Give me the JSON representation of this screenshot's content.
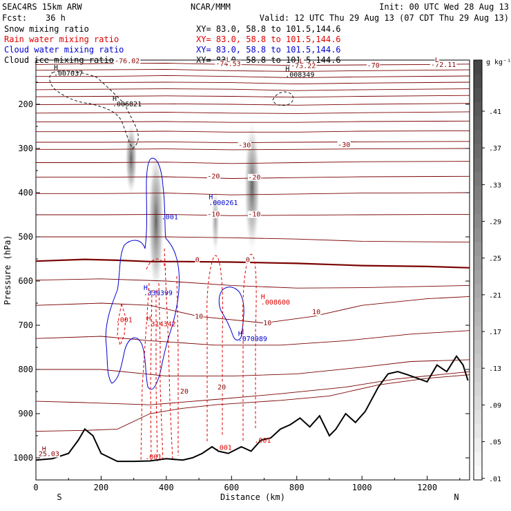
{
  "header": {
    "model": "SEAC4RS 15km ARW",
    "center": "NCAR/MMM",
    "init": "Init: 00 UTC Wed 28 Aug 13",
    "fcst_label": "Fcst:",
    "fcst_value": "36 h",
    "valid": "Valid: 12 UTC Thu 29 Aug 13 (07 CDT Thu 29 Aug 13)"
  },
  "fields": [
    {
      "name": "Snow mixing ratio",
      "xy": "XY=  83.0, 58.8 to 101.5,144.6",
      "color": "#000000"
    },
    {
      "name": "Rain water mixing ratio",
      "xy": "XY=  83.0, 58.8 to 101.5,144.6",
      "color": "#dd0000"
    },
    {
      "name": "Cloud water mixing ratio",
      "xy": "XY=  83.0, 58.8 to 101.5,144.6",
      "color": "#0000cc"
    },
    {
      "name": "Cloud ice mixing ratio",
      "xy": "XY=  83.0, 58.8 to 101.5,144.6",
      "color": "#000000"
    }
  ],
  "colorbar": {
    "units": "g kg⁻¹",
    "labels": [
      ".41",
      ".37",
      ".33",
      ".29",
      ".25",
      ".21",
      ".17",
      ".13",
      ".09",
      ".05",
      ".01"
    ]
  },
  "chart_data": {
    "type": "contour-cross-section",
    "xlabel": "Distance (km)",
    "ylabel": "Pressure (hPa)",
    "xlim": [
      0,
      1330
    ],
    "ylim": [
      1050,
      100
    ],
    "xticks": [
      0,
      200,
      400,
      600,
      800,
      1000,
      1200
    ],
    "yticks": [
      1000,
      900,
      800,
      700,
      600,
      500,
      400,
      300,
      200
    ],
    "end_labels": {
      "left": "S",
      "right": "N"
    },
    "temperature_contour_labels": [
      {
        "text": "-76.02",
        "x": 280,
        "p": 107
      },
      {
        "text": "-74.53",
        "x": 590,
        "p": 113
      },
      {
        "text": "-73.22",
        "x": 820,
        "p": 118
      },
      {
        "text": "-70",
        "x": 1035,
        "p": 117
      },
      {
        "text": "-72.11",
        "x": 1250,
        "p": 116
      },
      {
        "text": "L",
        "x": 590,
        "p": 104
      },
      {
        "text": "L",
        "x": 815,
        "p": 108
      },
      {
        "text": "L",
        "x": 1230,
        "p": 105
      },
      {
        "text": "-30",
        "x": 640,
        "p": 298
      },
      {
        "text": "-30",
        "x": 945,
        "p": 297
      },
      {
        "text": "-20",
        "x": 545,
        "p": 368
      },
      {
        "text": "-20",
        "x": 670,
        "p": 370
      },
      {
        "text": "-10",
        "x": 545,
        "p": 454
      },
      {
        "text": "-10",
        "x": 670,
        "p": 454
      },
      {
        "text": "0",
        "x": 495,
        "p": 557
      },
      {
        "text": "0",
        "x": 650,
        "p": 557
      },
      {
        "text": "10",
        "x": 500,
        "p": 685
      },
      {
        "text": "10",
        "x": 710,
        "p": 700
      },
      {
        "text": "10",
        "x": 860,
        "p": 675
      },
      {
        "text": "20",
        "x": 455,
        "p": 855
      },
      {
        "text": "20",
        "x": 570,
        "p": 845
      },
      {
        "text": "H",
        "x": 25,
        "p": 985
      },
      {
        "text": "25.03",
        "x": 40,
        "p": 996
      }
    ],
    "hydrometeor_labels": [
      {
        "text": "H",
        "x": 55,
        "p": 122,
        "field": "snow"
      },
      {
        "text": ".007037",
        "x": 55,
        "p": 135,
        "field": "snow"
      },
      {
        "text": "H",
        "x": 235,
        "p": 192,
        "field": "snow"
      },
      {
        "text": ".006821",
        "x": 235,
        "p": 205,
        "field": "snow"
      },
      {
        "text": "H",
        "x": 765,
        "p": 125,
        "field": "snow"
      },
      {
        "text": ".008349",
        "x": 765,
        "p": 138,
        "field": "snow"
      },
      {
        "text": "H",
        "x": 530,
        "p": 415,
        "field": "cloud_water"
      },
      {
        "text": ".000261",
        "x": 530,
        "p": 428,
        "field": "cloud_water"
      },
      {
        "text": ".001",
        "x": 385,
        "p": 460,
        "field": "cloud_water"
      },
      {
        "text": "H",
        "x": 330,
        "p": 620,
        "field": "cloud_water"
      },
      {
        "text": ".330399",
        "x": 330,
        "p": 632,
        "field": "cloud_water"
      },
      {
        "text": "H",
        "x": 620,
        "p": 724,
        "field": "cloud_water"
      },
      {
        "text": ".070989",
        "x": 620,
        "p": 736,
        "field": "cloud_water"
      },
      {
        "text": ".001",
        "x": 245,
        "p": 693,
        "field": "rain"
      },
      {
        "text": "H",
        "x": 340,
        "p": 690,
        "field": "rain"
      },
      {
        "text": ".314342",
        "x": 340,
        "p": 702,
        "field": "rain"
      },
      {
        "text": "H",
        "x": 690,
        "p": 641,
        "field": "rain"
      },
      {
        "text": ".008600",
        "x": 690,
        "p": 653,
        "field": "rain"
      },
      {
        "text": ".001",
        "x": 335,
        "p": 1003,
        "field": "rain"
      },
      {
        "text": ".001",
        "x": 550,
        "p": 982,
        "field": "rain"
      },
      {
        "text": ".001",
        "x": 670,
        "p": 966,
        "field": "rain"
      }
    ],
    "isotherms": [
      {
        "level": -76,
        "points": [
          [
            0,
            110
          ],
          [
            200,
            108
          ],
          [
            400,
            107
          ],
          [
            600,
            110
          ],
          [
            800,
            112
          ],
          [
            1000,
            111
          ],
          [
            1200,
            110
          ],
          [
            1330,
            109
          ]
        ]
      },
      {
        "level": -74,
        "points": [
          [
            0,
            123
          ],
          [
            200,
            122
          ],
          [
            400,
            121
          ],
          [
            600,
            124
          ],
          [
            800,
            126
          ],
          [
            1000,
            124
          ],
          [
            1330,
            122
          ]
        ]
      },
      {
        "level": -70,
        "points": [
          [
            0,
            137
          ],
          [
            200,
            137
          ],
          [
            400,
            135
          ],
          [
            600,
            137
          ],
          [
            800,
            140
          ],
          [
            1000,
            138
          ],
          [
            1330,
            136
          ]
        ]
      },
      {
        "level": -66,
        "points": [
          [
            0,
            151
          ],
          [
            200,
            151
          ],
          [
            400,
            150
          ],
          [
            600,
            151
          ],
          [
            800,
            154
          ],
          [
            1000,
            152
          ],
          [
            1330,
            150
          ]
        ]
      },
      {
        "level": -62,
        "points": [
          [
            0,
            167
          ],
          [
            200,
            166
          ],
          [
            400,
            165
          ],
          [
            600,
            166
          ],
          [
            800,
            169
          ],
          [
            1000,
            167
          ],
          [
            1330,
            165
          ]
        ]
      },
      {
        "level": -58,
        "points": [
          [
            0,
            183
          ],
          [
            200,
            182
          ],
          [
            400,
            181
          ],
          [
            600,
            182
          ],
          [
            800,
            184
          ],
          [
            1000,
            182
          ],
          [
            1330,
            180
          ]
        ]
      },
      {
        "level": -54,
        "points": [
          [
            0,
            201
          ],
          [
            200,
            200
          ],
          [
            400,
            199
          ],
          [
            600,
            200
          ],
          [
            800,
            202
          ],
          [
            1000,
            200
          ],
          [
            1330,
            198
          ]
        ]
      },
      {
        "level": -50,
        "points": [
          [
            0,
            220
          ],
          [
            200,
            219
          ],
          [
            400,
            218
          ],
          [
            600,
            220
          ],
          [
            800,
            221
          ],
          [
            1000,
            219
          ],
          [
            1330,
            217
          ]
        ]
      },
      {
        "level": -45,
        "points": [
          [
            0,
            240
          ],
          [
            200,
            240
          ],
          [
            400,
            239
          ],
          [
            600,
            241
          ],
          [
            800,
            241
          ],
          [
            1000,
            239
          ],
          [
            1330,
            238
          ]
        ]
      },
      {
        "level": -40,
        "points": [
          [
            0,
            262
          ],
          [
            200,
            262
          ],
          [
            400,
            261
          ],
          [
            600,
            263
          ],
          [
            800,
            263
          ],
          [
            1000,
            261
          ],
          [
            1330,
            260
          ]
        ]
      },
      {
        "level": -35,
        "points": [
          [
            0,
            286
          ],
          [
            200,
            286
          ],
          [
            400,
            285
          ],
          [
            600,
            287
          ],
          [
            800,
            286
          ],
          [
            1000,
            285
          ],
          [
            1330,
            284
          ]
        ]
      },
      {
        "level": -30,
        "points": [
          [
            0,
            302
          ],
          [
            200,
            302
          ],
          [
            400,
            301
          ],
          [
            600,
            303
          ],
          [
            800,
            302
          ],
          [
            1000,
            301
          ],
          [
            1330,
            300
          ]
        ]
      },
      {
        "level": -25,
        "points": [
          [
            0,
            332
          ],
          [
            200,
            332
          ],
          [
            400,
            331
          ],
          [
            600,
            334
          ],
          [
            800,
            332
          ],
          [
            1000,
            330
          ],
          [
            1330,
            329
          ]
        ]
      },
      {
        "level": -20,
        "points": [
          [
            0,
            365
          ],
          [
            200,
            365
          ],
          [
            400,
            364
          ],
          [
            600,
            368
          ],
          [
            800,
            366
          ],
          [
            1000,
            364
          ],
          [
            1330,
            363
          ]
        ]
      },
      {
        "level": -15,
        "points": [
          [
            0,
            402
          ],
          [
            200,
            402
          ],
          [
            400,
            401
          ],
          [
            600,
            405
          ],
          [
            800,
            403
          ],
          [
            1000,
            401
          ],
          [
            1330,
            400
          ]
        ]
      },
      {
        "level": -10,
        "points": [
          [
            0,
            450
          ],
          [
            200,
            450
          ],
          [
            400,
            449
          ],
          [
            600,
            452
          ],
          [
            800,
            451
          ],
          [
            1000,
            450
          ],
          [
            1330,
            449
          ]
        ]
      },
      {
        "level": -5,
        "points": [
          [
            0,
            500
          ],
          [
            200,
            500
          ],
          [
            400,
            500
          ],
          [
            600,
            502
          ],
          [
            800,
            505
          ],
          [
            1000,
            510
          ],
          [
            1330,
            512
          ]
        ]
      },
      {
        "level": 0,
        "points": [
          [
            0,
            555
          ],
          [
            150,
            551
          ],
          [
            250,
            553
          ],
          [
            350,
            556
          ],
          [
            450,
            556
          ],
          [
            600,
            557
          ],
          [
            800,
            560
          ],
          [
            1000,
            565
          ],
          [
            1200,
            567
          ],
          [
            1330,
            570
          ]
        ]
      },
      {
        "level": 5,
        "points": [
          [
            0,
            598
          ],
          [
            200,
            595
          ],
          [
            400,
            600
          ],
          [
            600,
            610
          ],
          [
            800,
            616
          ],
          [
            1000,
            615
          ],
          [
            1200,
            612
          ],
          [
            1330,
            610
          ]
        ]
      },
      {
        "level": 10,
        "points": [
          [
            0,
            655
          ],
          [
            200,
            650
          ],
          [
            350,
            655
          ],
          [
            500,
            680
          ],
          [
            700,
            695
          ],
          [
            850,
            680
          ],
          [
            1000,
            655
          ],
          [
            1200,
            640
          ],
          [
            1330,
            635
          ]
        ]
      },
      {
        "level": 15,
        "points": [
          [
            0,
            730
          ],
          [
            200,
            725
          ],
          [
            350,
            735
          ],
          [
            550,
            745
          ],
          [
            750,
            745
          ],
          [
            950,
            735
          ],
          [
            1150,
            720
          ],
          [
            1330,
            712
          ]
        ]
      },
      {
        "level": 20,
        "points": [
          [
            0,
            800
          ],
          [
            200,
            800
          ],
          [
            400,
            815
          ],
          [
            600,
            815
          ],
          [
            800,
            810
          ],
          [
            1000,
            795
          ],
          [
            1150,
            782
          ],
          [
            1330,
            778
          ]
        ]
      },
      {
        "level": 25,
        "points": [
          [
            0,
            872
          ],
          [
            150,
            875
          ],
          [
            350,
            880
          ],
          [
            550,
            868
          ],
          [
            750,
            855
          ],
          [
            950,
            840
          ],
          [
            1100,
            822
          ],
          [
            1330,
            805
          ]
        ]
      },
      {
        "level": 28,
        "points": [
          [
            0,
            940
          ],
          [
            150,
            938
          ],
          [
            250,
            935
          ],
          [
            350,
            900
          ],
          [
            450,
            888
          ],
          [
            550,
            880
          ],
          [
            750,
            870
          ],
          [
            900,
            860
          ],
          [
            1050,
            835
          ],
          [
            1200,
            820
          ],
          [
            1330,
            812
          ]
        ]
      }
    ],
    "terrain": [
      [
        0,
        1005
      ],
      [
        50,
        1002
      ],
      [
        100,
        990
      ],
      [
        130,
        960
      ],
      [
        150,
        935
      ],
      [
        175,
        950
      ],
      [
        200,
        990
      ],
      [
        250,
        1008
      ],
      [
        300,
        1008
      ],
      [
        350,
        1007
      ],
      [
        400,
        1002
      ],
      [
        450,
        1005
      ],
      [
        480,
        1000
      ],
      [
        510,
        990
      ],
      [
        540,
        975
      ],
      [
        560,
        985
      ],
      [
        590,
        990
      ],
      [
        630,
        975
      ],
      [
        660,
        985
      ],
      [
        690,
        960
      ],
      [
        720,
        955
      ],
      [
        750,
        935
      ],
      [
        780,
        925
      ],
      [
        810,
        910
      ],
      [
        840,
        930
      ],
      [
        870,
        905
      ],
      [
        900,
        950
      ],
      [
        920,
        935
      ],
      [
        950,
        900
      ],
      [
        980,
        920
      ],
      [
        1010,
        895
      ],
      [
        1050,
        840
      ],
      [
        1080,
        810
      ],
      [
        1110,
        805
      ],
      [
        1140,
        812
      ],
      [
        1170,
        820
      ],
      [
        1200,
        828
      ],
      [
        1230,
        790
      ],
      [
        1260,
        805
      ],
      [
        1290,
        770
      ],
      [
        1310,
        790
      ],
      [
        1325,
        825
      ]
    ]
  }
}
